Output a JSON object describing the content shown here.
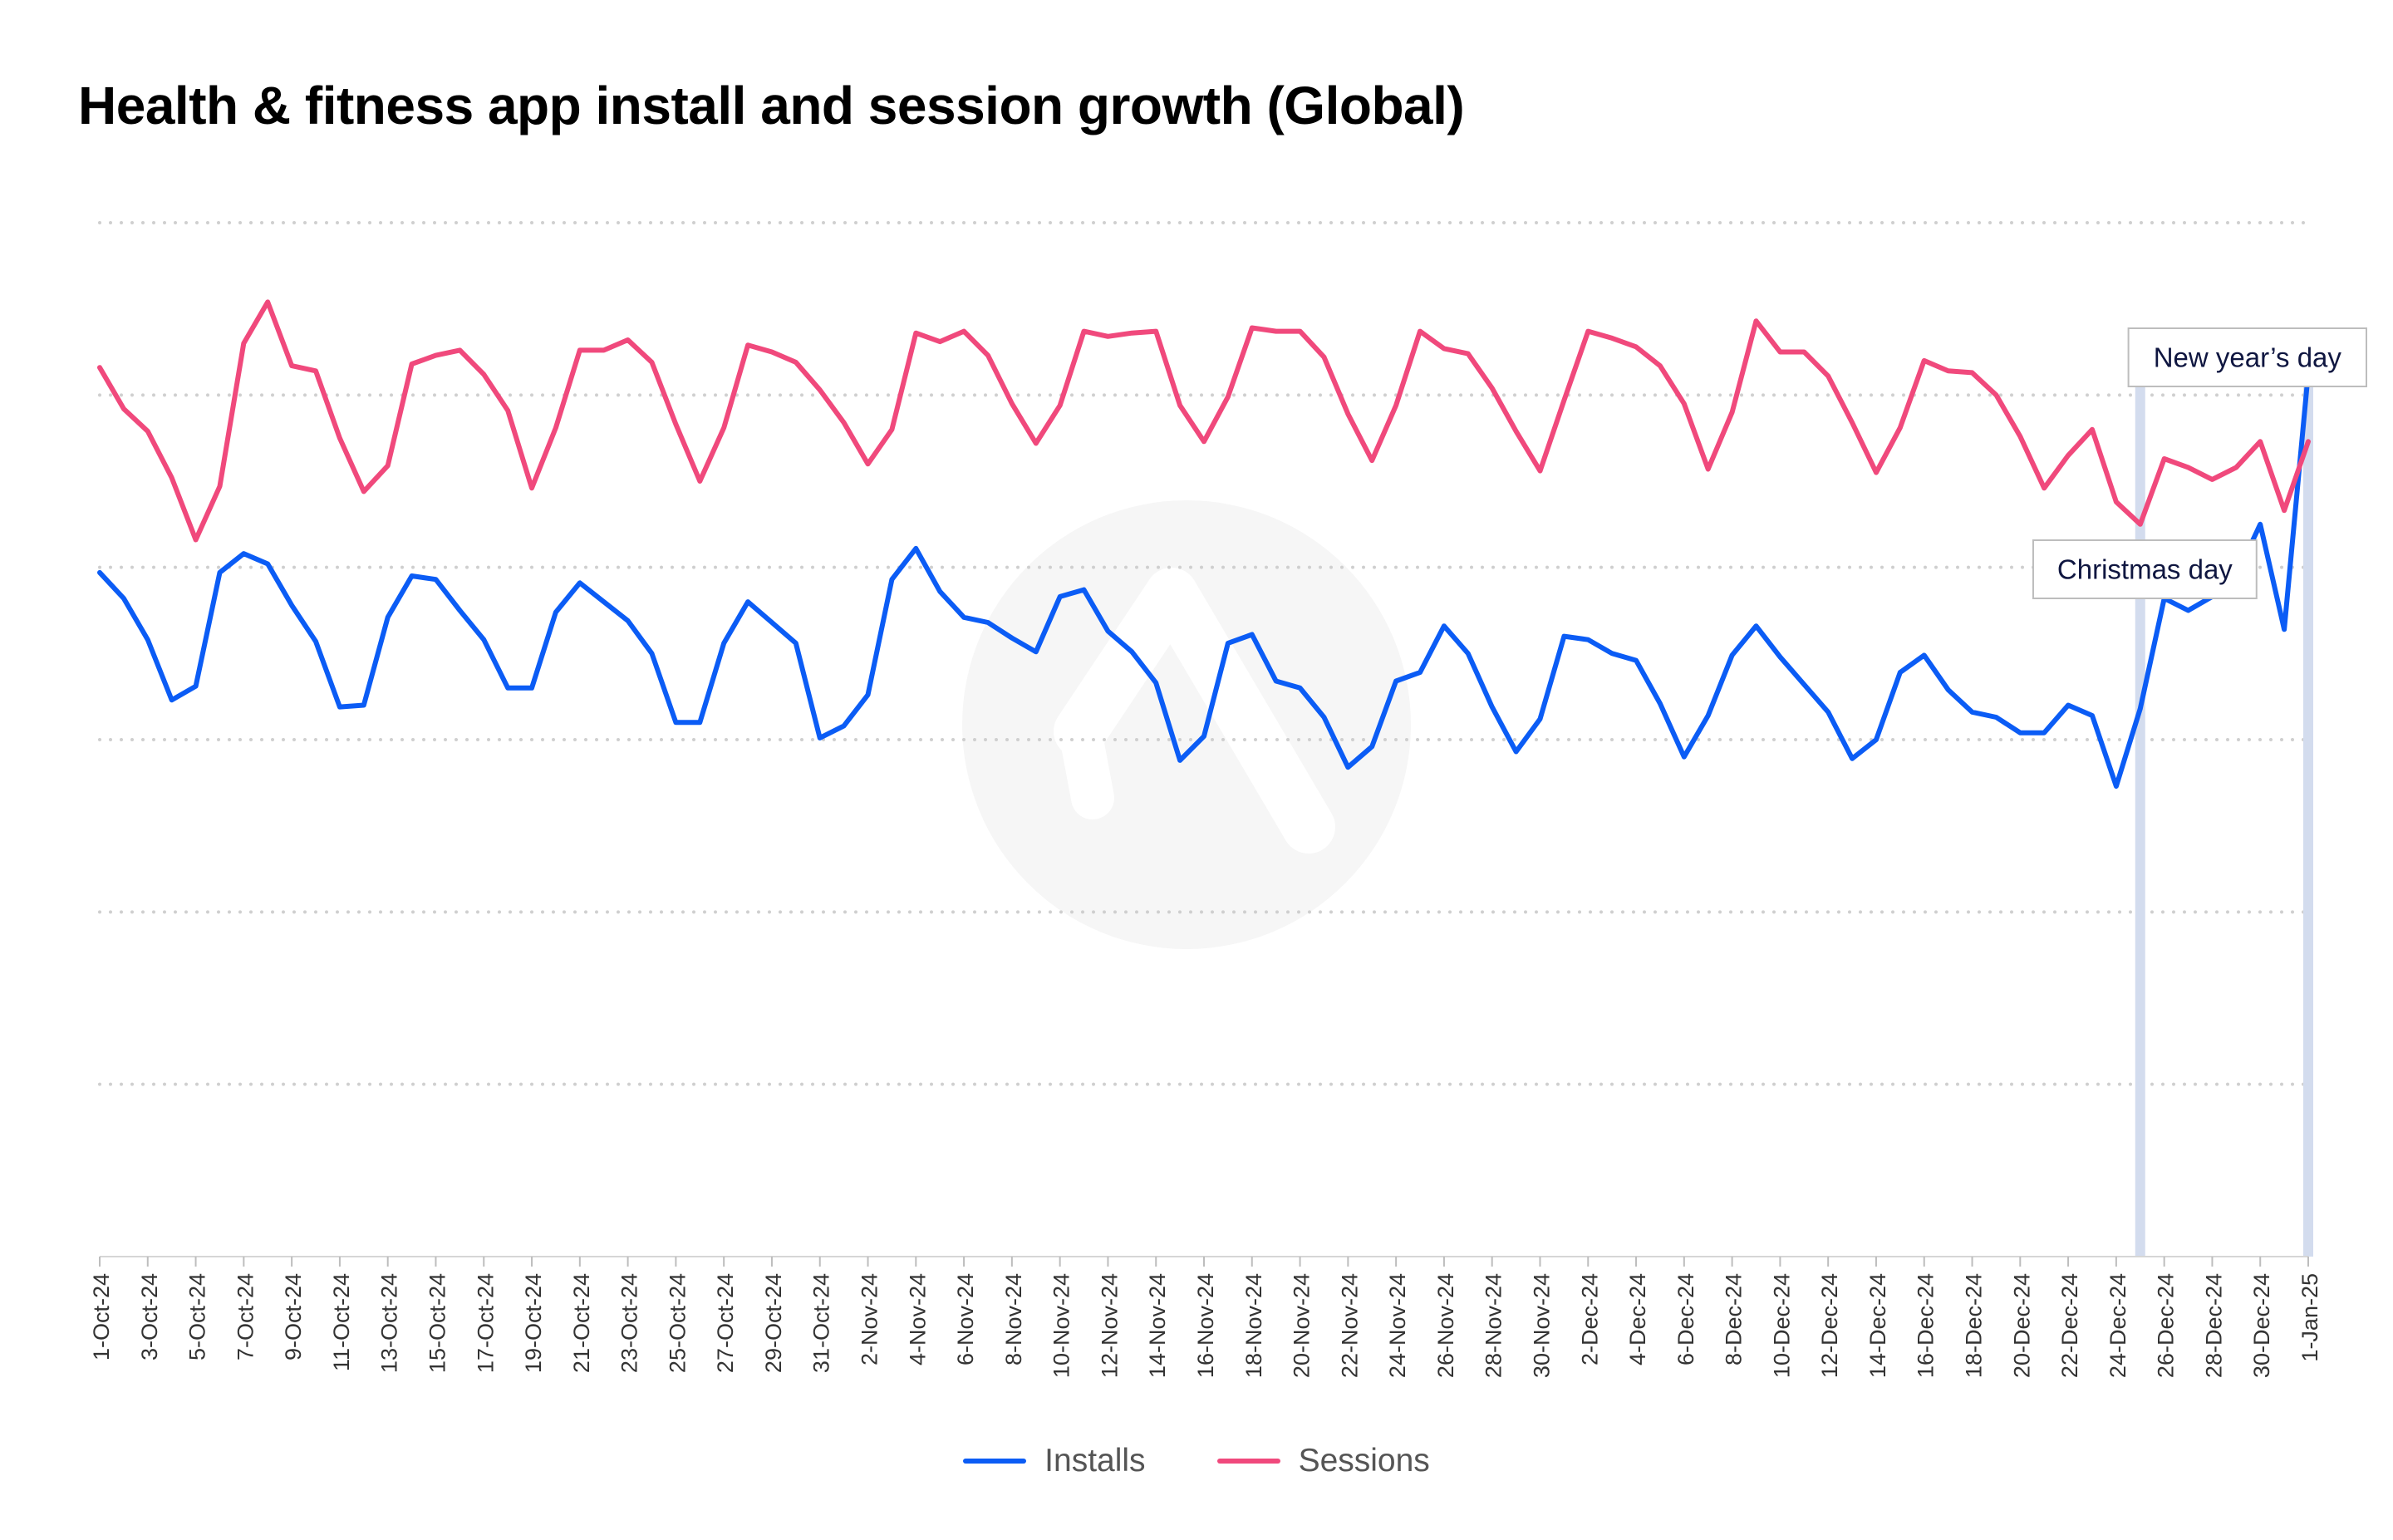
{
  "title": "Health & fitness app install and session growth (Global)",
  "chart_data": {
    "type": "line",
    "title": "Health & fitness app install and session growth (Global)",
    "xlabel": "",
    "ylabel": "",
    "x": [
      "1-Oct-24",
      "2-Oct-24",
      "3-Oct-24",
      "4-Oct-24",
      "5-Oct-24",
      "6-Oct-24",
      "7-Oct-24",
      "8-Oct-24",
      "9-Oct-24",
      "10-Oct-24",
      "11-Oct-24",
      "12-Oct-24",
      "13-Oct-24",
      "14-Oct-24",
      "15-Oct-24",
      "16-Oct-24",
      "17-Oct-24",
      "18-Oct-24",
      "19-Oct-24",
      "20-Oct-24",
      "21-Oct-24",
      "22-Oct-24",
      "23-Oct-24",
      "24-Oct-24",
      "25-Oct-24",
      "26-Oct-24",
      "27-Oct-24",
      "28-Oct-24",
      "29-Oct-24",
      "30-Oct-24",
      "31-Oct-24",
      "1-Nov-24",
      "2-Nov-24",
      "3-Nov-24",
      "4-Nov-24",
      "5-Nov-24",
      "6-Nov-24",
      "7-Nov-24",
      "8-Nov-24",
      "9-Nov-24",
      "10-Nov-24",
      "11-Nov-24",
      "12-Nov-24",
      "13-Nov-24",
      "14-Nov-24",
      "15-Nov-24",
      "16-Nov-24",
      "17-Nov-24",
      "18-Nov-24",
      "19-Nov-24",
      "20-Nov-24",
      "21-Nov-24",
      "22-Nov-24",
      "23-Nov-24",
      "24-Nov-24",
      "25-Nov-24",
      "26-Nov-24",
      "27-Nov-24",
      "28-Nov-24",
      "29-Nov-24",
      "30-Nov-24",
      "1-Dec-24",
      "2-Dec-24",
      "3-Dec-24",
      "4-Dec-24",
      "5-Dec-24",
      "6-Dec-24",
      "7-Dec-24",
      "8-Dec-24",
      "9-Dec-24",
      "10-Dec-24",
      "11-Dec-24",
      "12-Dec-24",
      "13-Dec-24",
      "14-Dec-24",
      "15-Dec-24",
      "16-Dec-24",
      "17-Dec-24",
      "18-Dec-24",
      "19-Dec-24",
      "20-Dec-24",
      "21-Dec-24",
      "22-Dec-24",
      "23-Dec-24",
      "24-Dec-24",
      "25-Dec-24",
      "26-Dec-24",
      "27-Dec-24",
      "28-Dec-24",
      "29-Dec-24",
      "30-Dec-24",
      "31-Dec-24",
      "1-Jan-25"
    ],
    "tick_labels": [
      "1-Oct-24",
      "3-Oct-24",
      "5-Oct-24",
      "7-Oct-24",
      "9-Oct-24",
      "11-Oct-24",
      "13-Oct-24",
      "15-Oct-24",
      "17-Oct-24",
      "19-Oct-24",
      "21-Oct-24",
      "23-Oct-24",
      "25-Oct-24",
      "27-Oct-24",
      "29-Oct-24",
      "31-Oct-24",
      "2-Nov-24",
      "4-Nov-24",
      "6-Nov-24",
      "8-Nov-24",
      "10-Nov-24",
      "12-Nov-24",
      "14-Nov-24",
      "16-Nov-24",
      "18-Nov-24",
      "20-Nov-24",
      "22-Nov-24",
      "24-Nov-24",
      "26-Nov-24",
      "28-Nov-24",
      "30-Nov-24",
      "2-Dec-24",
      "4-Dec-24",
      "6-Dec-24",
      "8-Dec-24",
      "10-Dec-24",
      "12-Dec-24",
      "14-Dec-24",
      "16-Dec-24",
      "18-Dec-24",
      "20-Dec-24",
      "22-Dec-24",
      "24-Dec-24",
      "26-Dec-24",
      "28-Dec-24",
      "30-Dec-24",
      "1-Jan-25"
    ],
    "ylim": [
      0,
      6
    ],
    "y_gridlines": [
      0,
      1,
      2,
      3,
      4,
      5,
      6
    ],
    "y_tick_labels_shown": false,
    "grid": true,
    "legend": "bottom-center",
    "series": [
      {
        "name": "Installs",
        "color": "#0b5cf5",
        "values": [
          3.97,
          3.82,
          3.58,
          3.23,
          3.31,
          3.97,
          4.08,
          4.02,
          3.78,
          3.57,
          3.19,
          3.2,
          3.71,
          3.95,
          3.93,
          3.75,
          3.58,
          3.3,
          3.3,
          3.74,
          3.91,
          3.8,
          3.69,
          3.5,
          3.1,
          3.1,
          3.56,
          3.8,
          3.68,
          3.56,
          3.01,
          3.08,
          3.26,
          3.93,
          4.11,
          3.86,
          3.71,
          3.68,
          3.59,
          3.51,
          3.83,
          3.87,
          3.63,
          3.51,
          3.33,
          2.88,
          3.02,
          3.56,
          3.61,
          3.34,
          3.3,
          3.13,
          2.84,
          2.96,
          3.34,
          3.39,
          3.66,
          3.5,
          3.19,
          2.93,
          3.12,
          3.6,
          3.58,
          3.5,
          3.46,
          3.21,
          2.9,
          3.14,
          3.49,
          3.66,
          3.48,
          3.32,
          3.16,
          2.89,
          3.0,
          3.39,
          3.49,
          3.29,
          3.16,
          3.13,
          3.04,
          3.04,
          3.2,
          3.14,
          2.73,
          3.18,
          3.82,
          3.75,
          3.83,
          3.95,
          4.25,
          3.64,
          5.13
        ]
      },
      {
        "name": "Sessions",
        "color": "#f0497c",
        "values": [
          5.16,
          4.92,
          4.79,
          4.52,
          4.16,
          4.47,
          5.3,
          5.54,
          5.17,
          5.14,
          4.75,
          4.44,
          4.59,
          5.18,
          5.23,
          5.26,
          5.12,
          4.91,
          4.46,
          4.81,
          5.26,
          5.26,
          5.32,
          5.19,
          4.83,
          4.5,
          4.81,
          5.29,
          5.25,
          5.19,
          5.03,
          4.84,
          4.6,
          4.8,
          5.36,
          5.31,
          5.37,
          5.23,
          4.95,
          4.72,
          4.94,
          5.37,
          5.34,
          5.36,
          5.37,
          4.94,
          4.73,
          4.99,
          5.39,
          5.37,
          5.37,
          5.22,
          4.89,
          4.62,
          4.94,
          5.37,
          5.27,
          5.24,
          5.04,
          4.79,
          4.56,
          4.97,
          5.37,
          5.33,
          5.28,
          5.17,
          4.95,
          4.57,
          4.9,
          5.43,
          5.25,
          5.25,
          5.11,
          4.84,
          4.55,
          4.81,
          5.2,
          5.14,
          5.13,
          5.0,
          4.76,
          4.46,
          4.65,
          4.8,
          4.38,
          4.25,
          4.63,
          4.58,
          4.51,
          4.58,
          4.73,
          4.33,
          4.73
        ]
      }
    ],
    "annotations": [
      {
        "text": "Christmas day",
        "x": "25-Dec-24",
        "type": "vertical-band"
      },
      {
        "text": "New year’s day",
        "x": "1-Jan-25",
        "type": "vertical-band"
      }
    ],
    "colors": {
      "installs": "#0b5cf5",
      "sessions": "#f0497c",
      "band": "#d3dcee",
      "grid": "#cfcfcf",
      "annotation_text": "#0f1640"
    }
  },
  "legend": {
    "items": [
      {
        "label": "Installs",
        "color": "#0b5cf5"
      },
      {
        "label": "Sessions",
        "color": "#f0497c"
      }
    ]
  }
}
